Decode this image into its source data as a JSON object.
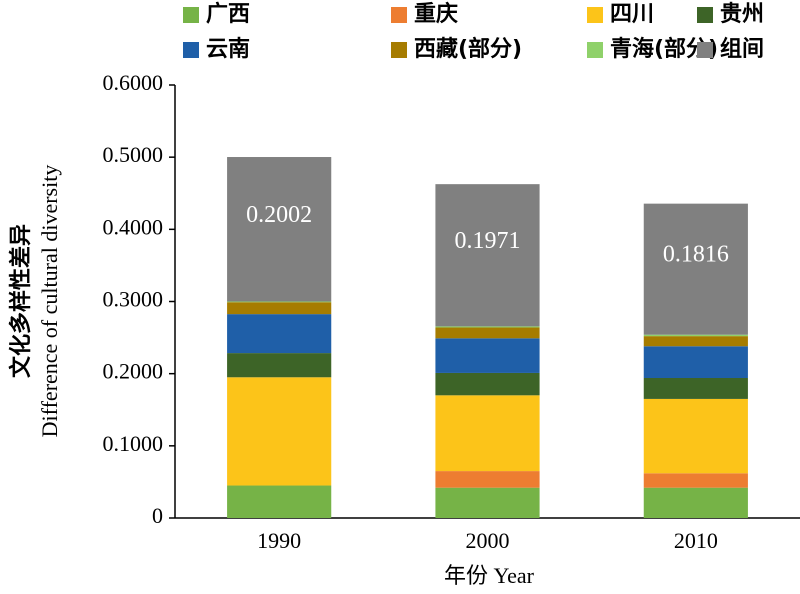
{
  "chart_data": {
    "type": "stacked_bar",
    "x_label": "年份 Year",
    "y_label": [
      "文化多样性差异",
      "Difference of cultural  diversity"
    ],
    "categories": [
      "1990",
      "2000",
      "2010"
    ],
    "series": [
      {
        "name": "广西",
        "color": "#76b347",
        "values": [
          0.045,
          0.042,
          0.042
        ]
      },
      {
        "name": "重庆",
        "color": "#ed7d31",
        "values": [
          0,
          0.023,
          0.02
        ]
      },
      {
        "name": "四川",
        "color": "#fcc419",
        "values": [
          0.15,
          0.105,
          0.103
        ]
      },
      {
        "name": "贵州",
        "color": "#3d6427",
        "values": [
          0.0335,
          0.031,
          0.029
        ]
      },
      {
        "name": "云南",
        "color": "#1f5fa8",
        "values": [
          0.054,
          0.048,
          0.044
        ]
      },
      {
        "name": "西藏(部分)",
        "color": "#a67c00",
        "values": [
          0.0165,
          0.015,
          0.014
        ]
      },
      {
        "name": "青海(部分)",
        "color": "#8fd16a",
        "values": [
          0.001,
          0.0015,
          0.002
        ]
      },
      {
        "name": "组间",
        "color": "#808080",
        "values": [
          0.2002,
          0.1971,
          0.1816
        ],
        "value_labels": [
          "0.2002",
          "0.1971",
          "0.1816"
        ]
      }
    ],
    "ylim": [
      0,
      0.6
    ],
    "yticks": [
      0,
      {
        "value": 0.1,
        "label": "0.1000"
      },
      {
        "value": 0.2,
        "label": "0.2000"
      },
      {
        "value": 0.3,
        "label": "0.3000"
      },
      {
        "value": 0.4,
        "label": "0.4000"
      },
      {
        "value": 0.5,
        "label": "0.5000"
      },
      {
        "value": 0.6,
        "label": "0.6000"
      }
    ]
  }
}
